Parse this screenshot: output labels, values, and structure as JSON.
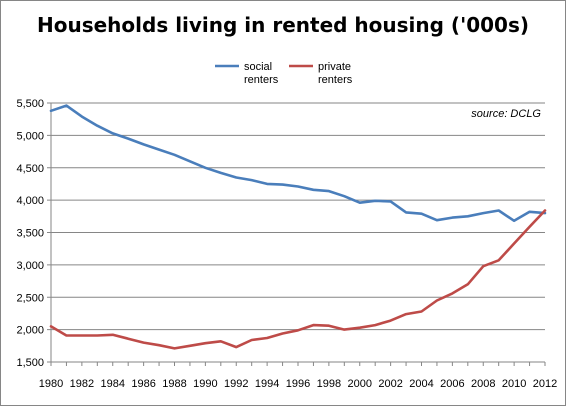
{
  "chart_data": {
    "type": "line",
    "title": "Households living in rented housing ('000s)",
    "annotation": "source: DCLG",
    "xlabel": "",
    "ylabel": "",
    "ylim": [
      1500,
      5500
    ],
    "yticks": [
      1500,
      2000,
      2500,
      3000,
      3500,
      4000,
      4500,
      5000,
      5500
    ],
    "ytick_labels": [
      "1,500",
      "2,000",
      "2,500",
      "3,000",
      "3,500",
      "4,000",
      "4,500",
      "5,000",
      "5,500"
    ],
    "x": [
      1980,
      1981,
      1982,
      1983,
      1984,
      1985,
      1986,
      1987,
      1988,
      1989,
      1990,
      1991,
      1992,
      1993,
      1994,
      1995,
      1996,
      1997,
      1998,
      1999,
      2000,
      2001,
      2002,
      2003,
      2004,
      2005,
      2006,
      2007,
      2008,
      2009,
      2010,
      2011,
      2012
    ],
    "xtick_labels": [
      "1980",
      "1982",
      "1984",
      "1986",
      "1988",
      "1990",
      "1992",
      "1994",
      "1996",
      "1998",
      "2000",
      "2002",
      "2004",
      "2006",
      "2008",
      "2010",
      "2012"
    ],
    "grid": "horizontal",
    "legend_position": "top",
    "series": [
      {
        "name_lines": [
          "social",
          "renters"
        ],
        "color": "#4a7ebb",
        "values": [
          5380,
          5460,
          5290,
          5150,
          5030,
          4950,
          4860,
          4780,
          4700,
          4600,
          4500,
          4420,
          4350,
          4310,
          4250,
          4240,
          4210,
          4160,
          4140,
          4060,
          3960,
          3990,
          3980,
          3810,
          3790,
          3690,
          3730,
          3750,
          3800,
          3840,
          3680,
          3820,
          3800
        ]
      },
      {
        "name_lines": [
          "private",
          "renters"
        ],
        "color": "#be4b48",
        "values": [
          2050,
          1910,
          1910,
          1910,
          1920,
          1860,
          1800,
          1760,
          1710,
          1750,
          1790,
          1820,
          1730,
          1840,
          1870,
          1940,
          1990,
          2070,
          2060,
          2000,
          2030,
          2070,
          2140,
          2240,
          2280,
          2450,
          2560,
          2700,
          2980,
          3070,
          3330,
          3590,
          3840
        ]
      }
    ]
  }
}
